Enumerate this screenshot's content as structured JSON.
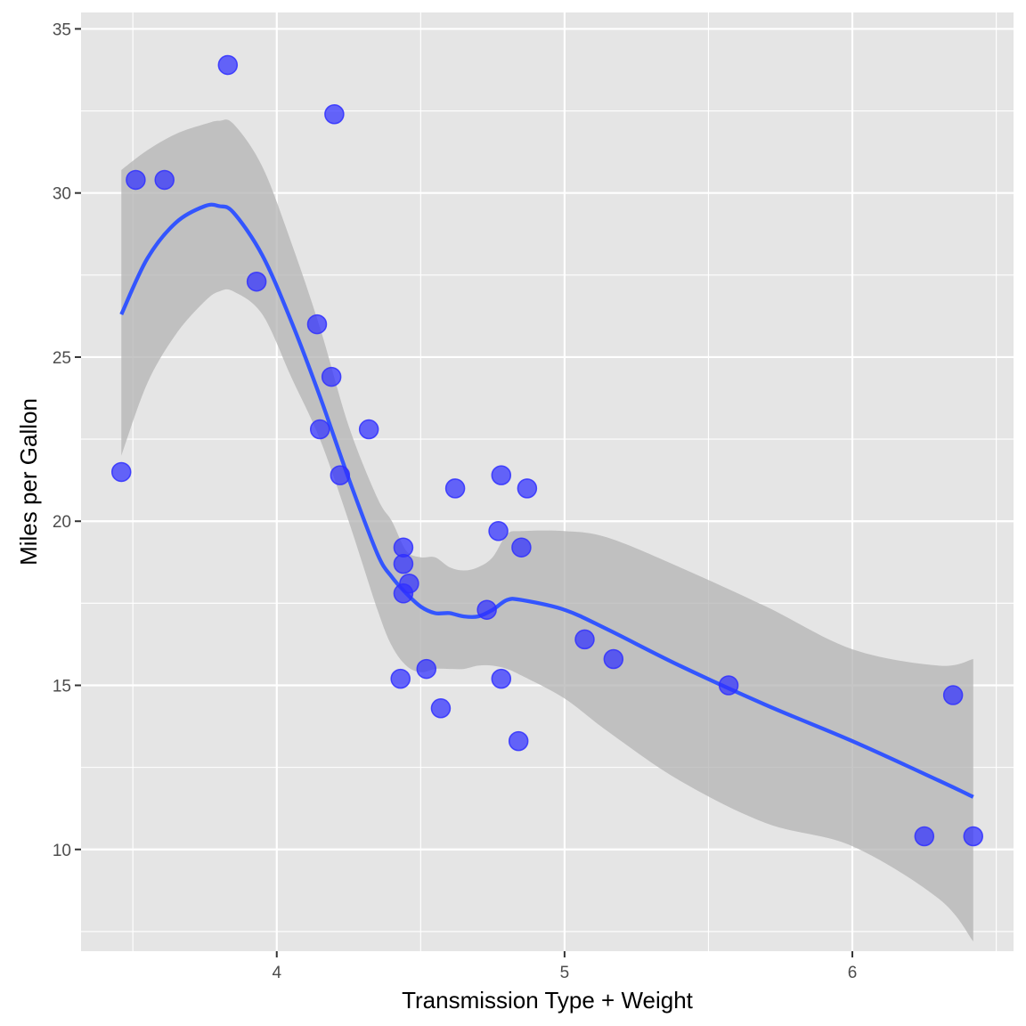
{
  "chart_data": {
    "type": "scatter",
    "title": "",
    "xlabel": "Transmission Type + Weight",
    "ylabel": "Miles per Gallon",
    "xlim": [
      3.32,
      6.56
    ],
    "ylim": [
      6.9,
      35.5
    ],
    "x_ticks": [
      4,
      5,
      6
    ],
    "x_tick_labels": [
      "4",
      "5",
      "6"
    ],
    "y_ticks": [
      10,
      15,
      20,
      25,
      30,
      35
    ],
    "y_tick_labels": [
      "10",
      "15",
      "20",
      "25",
      "30",
      "35"
    ],
    "grid": true,
    "legend": "none",
    "colors": {
      "panel_background": "#e5e5e5",
      "grid": "#ffffff",
      "points": "#2f2fff",
      "smooth_line": "#3355ff",
      "confidence_band": "#b3b3b3"
    },
    "points": {
      "x": [
        3.46,
        3.51,
        3.61,
        3.83,
        3.93,
        4.14,
        4.15,
        4.19,
        4.2,
        4.22,
        4.32,
        4.43,
        4.44,
        4.44,
        4.44,
        4.46,
        4.52,
        4.57,
        4.62,
        4.73,
        4.77,
        4.78,
        4.78,
        4.84,
        4.85,
        4.87,
        5.07,
        5.17,
        5.57,
        6.25,
        6.35,
        6.42
      ],
      "y": [
        21.5,
        30.4,
        30.4,
        33.9,
        27.3,
        26.0,
        22.8,
        24.4,
        32.4,
        21.4,
        22.8,
        15.2,
        19.2,
        18.7,
        17.8,
        18.1,
        15.5,
        14.3,
        21.0,
        17.3,
        19.7,
        21.4,
        15.2,
        13.3,
        19.2,
        21.0,
        16.4,
        15.8,
        15.0,
        10.4,
        14.7,
        10.4
      ]
    },
    "smooth": {
      "method": "loess",
      "x": [
        3.46,
        3.55,
        3.65,
        3.75,
        3.8,
        3.85,
        3.95,
        4.05,
        4.15,
        4.25,
        4.35,
        4.4,
        4.45,
        4.5,
        4.55,
        4.6,
        4.65,
        4.7,
        4.75,
        4.8,
        4.85,
        5.0,
        5.15,
        5.4,
        5.7,
        6.0,
        6.3,
        6.42
      ],
      "y": [
        26.3,
        28.0,
        29.1,
        29.6,
        29.6,
        29.4,
        28.1,
        26.1,
        23.8,
        21.3,
        19.0,
        18.3,
        17.8,
        17.4,
        17.2,
        17.2,
        17.1,
        17.1,
        17.3,
        17.6,
        17.6,
        17.3,
        16.7,
        15.6,
        14.4,
        13.3,
        12.1,
        11.6
      ],
      "lower": [
        22.0,
        24.2,
        25.7,
        26.7,
        27.0,
        27.0,
        26.3,
        24.4,
        22.5,
        20.0,
        17.3,
        16.2,
        15.6,
        15.4,
        15.5,
        15.5,
        15.5,
        15.6,
        15.6,
        15.5,
        15.3,
        14.6,
        13.6,
        12.1,
        10.8,
        10.1,
        8.5,
        7.2
      ],
      "upper": [
        30.7,
        31.3,
        31.8,
        32.1,
        32.2,
        32.1,
        30.8,
        28.5,
        25.9,
        22.9,
        20.7,
        20.0,
        19.1,
        18.9,
        18.9,
        18.6,
        18.5,
        18.6,
        18.9,
        19.6,
        19.7,
        19.7,
        19.5,
        18.6,
        17.4,
        16.1,
        15.6,
        15.8
      ]
    }
  }
}
